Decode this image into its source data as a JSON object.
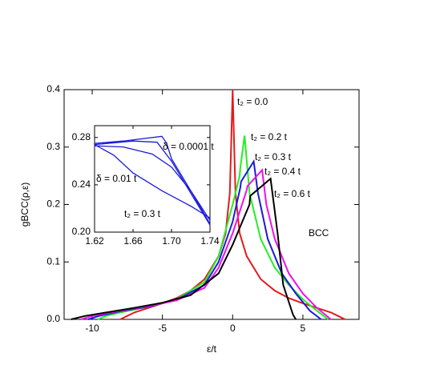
{
  "chart_data": [
    {
      "type": "line",
      "xlabel": "ε/t",
      "ylabel": "gBCC(ρ,ε)",
      "annotations": [
        "BCC"
      ],
      "xlim": [
        -12,
        9
      ],
      "ylim": [
        0,
        0.4
      ],
      "xticks": [
        -10,
        -5,
        0,
        5
      ],
      "yticks": [
        {
          "value": 0,
          "label": "0.0"
        },
        0.1,
        0.2,
        0.3,
        0.4
      ],
      "series": [
        {
          "name": "t₂ = 0.0",
          "color": "#e41a1c",
          "x": [
            -8,
            -7.5,
            -7,
            -6,
            -5,
            -4,
            -3,
            -2,
            -1,
            -0.5,
            -0.2,
            0,
            0.2,
            0.5,
            1,
            2,
            3,
            4,
            5,
            6,
            7,
            7.5,
            8
          ],
          "values": [
            0,
            0.006,
            0.012,
            0.02,
            0.028,
            0.037,
            0.05,
            0.07,
            0.11,
            0.15,
            0.22,
            0.4,
            0.22,
            0.15,
            0.11,
            0.07,
            0.05,
            0.037,
            0.028,
            0.02,
            0.012,
            0.006,
            0
          ]
        },
        {
          "name": "t₂ = 0.2 t",
          "color": "#22ee22",
          "x": [
            -9.6,
            -9,
            -8,
            -6,
            -4,
            -2,
            -1,
            0,
            0.5,
            0.55,
            0.85,
            1.2,
            2,
            3,
            4,
            5,
            6,
            6.8
          ],
          "values": [
            0,
            0.006,
            0.012,
            0.022,
            0.035,
            0.065,
            0.11,
            0.2,
            0.25,
            0.265,
            0.32,
            0.22,
            0.14,
            0.09,
            0.06,
            0.035,
            0.015,
            0
          ]
        },
        {
          "name": "t₂ = 0.3 t",
          "color": "#1a1adc",
          "x": [
            -10.3,
            -9.5,
            -8,
            -6,
            -4,
            -2,
            -1,
            0,
            0.55,
            0.6,
            1.5,
            1.8,
            2.5,
            3.5,
            4.5,
            5.5,
            6.3
          ],
          "values": [
            0,
            0.006,
            0.014,
            0.022,
            0.034,
            0.06,
            0.1,
            0.17,
            0.23,
            0.24,
            0.275,
            0.22,
            0.14,
            0.08,
            0.045,
            0.015,
            0
          ]
        },
        {
          "name": "t₂ = 0.4 t",
          "color": "#ee11ee",
          "x": [
            -10.8,
            -10,
            -8,
            -6,
            -4,
            -2,
            -1,
            0,
            1,
            1.05,
            2.1,
            2.4,
            3,
            4,
            5,
            6,
            7
          ],
          "values": [
            0,
            0.006,
            0.015,
            0.023,
            0.033,
            0.055,
            0.09,
            0.15,
            0.225,
            0.232,
            0.26,
            0.2,
            0.14,
            0.08,
            0.045,
            0.02,
            0
          ]
        },
        {
          "name": "t₂ = 0.6 t",
          "color": "#000000",
          "x": [
            -11.5,
            -10.5,
            -9,
            -7,
            -5,
            -3,
            -1,
            0,
            1.2,
            1.25,
            2.7,
            3.2,
            3.6,
            4.3,
            4.5
          ],
          "values": [
            0,
            0.006,
            0.012,
            0.02,
            0.029,
            0.042,
            0.08,
            0.13,
            0.2,
            0.215,
            0.245,
            0.15,
            0.06,
            0.008,
            0
          ]
        }
      ]
    },
    {
      "type": "line",
      "annotations": [
        "δ = 0.0001 t",
        "δ = 0.01 t",
        "t₂ = 0.3 t"
      ],
      "xlim": [
        1.62,
        1.74
      ],
      "ylim": [
        0.2,
        0.29
      ],
      "xticks": [
        1.62,
        1.66,
        {
          "value": 1.7,
          "label": "1.70"
        },
        1.74
      ],
      "yticks": [
        {
          "value": 0.2,
          "label": "0.20"
        },
        0.24,
        0.28
      ],
      "series": [
        {
          "color": "#1a1adc",
          "x": [
            1.62,
            1.65,
            1.69,
            1.695,
            1.7,
            1.72,
            1.74
          ],
          "values": [
            0.275,
            0.277,
            0.281,
            0.275,
            0.262,
            0.235,
            0.207
          ]
        },
        {
          "color": "#1a1adc",
          "x": [
            1.62,
            1.66,
            1.685,
            1.7,
            1.72,
            1.74
          ],
          "values": [
            0.274,
            0.277,
            0.276,
            0.26,
            0.233,
            0.206
          ]
        },
        {
          "color": "#1a1adc",
          "x": [
            1.62,
            1.65,
            1.68,
            1.7,
            1.72,
            1.74
          ],
          "values": [
            0.273,
            0.272,
            0.266,
            0.255,
            0.235,
            0.21
          ]
        },
        {
          "color": "#1a1adc",
          "x": [
            1.62,
            1.64,
            1.66,
            1.69,
            1.72,
            1.74
          ],
          "values": [
            0.274,
            0.265,
            0.25,
            0.235,
            0.222,
            0.212
          ]
        }
      ]
    }
  ]
}
